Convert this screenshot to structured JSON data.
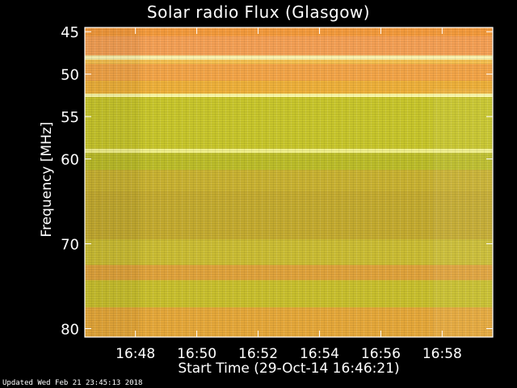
{
  "chart_data": {
    "type": "heatmap",
    "title": "Solar radio Flux (Glasgow)",
    "xlabel": "Start Time (29-Oct-14 16:46:21)",
    "ylabel": "Frequency [MHz]",
    "x_tick_labels": [
      "16:48",
      "16:50",
      "16:52",
      "16:54",
      "16:56",
      "16:58"
    ],
    "y_tick_labels": [
      "45",
      "50",
      "55",
      "60",
      "70",
      "80"
    ],
    "y_ticks_mhz": [
      45,
      50,
      55,
      60,
      70,
      80
    ],
    "y_range_mhz": [
      44.5,
      81
    ],
    "x_range_minutes_from_start": [
      0,
      13.3
    ],
    "x_ticks_minutes_from_start": [
      1.65,
      3.65,
      5.65,
      7.65,
      9.65,
      11.65
    ],
    "bands": [
      {
        "from_mhz": 44.5,
        "to_mhz": 45.5,
        "color": "#f39a3c"
      },
      {
        "from_mhz": 45.5,
        "to_mhz": 47.8,
        "color": "#f4a055"
      },
      {
        "from_mhz": 47.8,
        "to_mhz": 48.3,
        "color": "#fbf3b0"
      },
      {
        "from_mhz": 48.3,
        "to_mhz": 48.8,
        "color": "#f5c050"
      },
      {
        "from_mhz": 48.8,
        "to_mhz": 50.8,
        "color": "#f3a548"
      },
      {
        "from_mhz": 50.8,
        "to_mhz": 52.3,
        "color": "#eeb03a"
      },
      {
        "from_mhz": 52.3,
        "to_mhz": 52.7,
        "color": "#fbf8a6"
      },
      {
        "from_mhz": 52.7,
        "to_mhz": 58.8,
        "color": "#c8c62c"
      },
      {
        "from_mhz": 58.8,
        "to_mhz": 59.3,
        "color": "#f1f08a"
      },
      {
        "from_mhz": 59.3,
        "to_mhz": 61.3,
        "color": "#bcbd2a"
      },
      {
        "from_mhz": 61.3,
        "to_mhz": 63.8,
        "color": "#c9b232"
      },
      {
        "from_mhz": 63.8,
        "to_mhz": 69.5,
        "color": "#c4ab30"
      },
      {
        "from_mhz": 69.5,
        "to_mhz": 72.5,
        "color": "#cbbd34"
      },
      {
        "from_mhz": 72.5,
        "to_mhz": 74.3,
        "color": "#e0a33c"
      },
      {
        "from_mhz": 74.3,
        "to_mhz": 77.5,
        "color": "#c9c02e"
      },
      {
        "from_mhz": 77.5,
        "to_mhz": 81,
        "color": "#e5a83a"
      }
    ],
    "colors": {
      "background": "#000000",
      "axis": "#ffffff",
      "plot_base": "#c9b530"
    }
  },
  "footer": {
    "updated": "Updated Wed Feb 21 23:45:13 2018"
  }
}
